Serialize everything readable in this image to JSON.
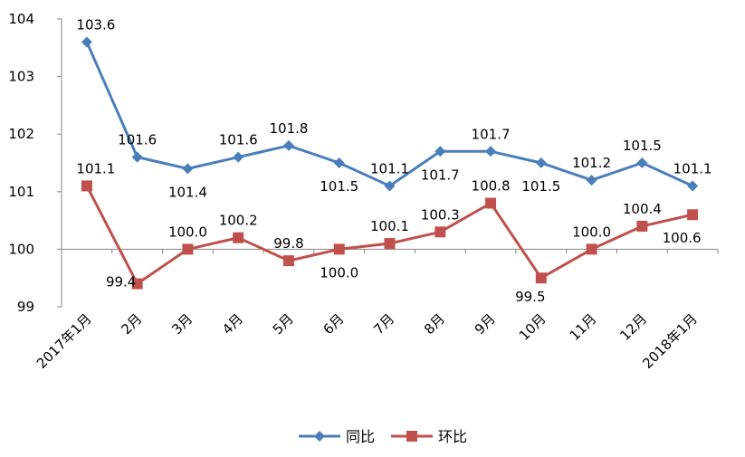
{
  "chart_data": {
    "type": "line",
    "categories": [
      "2017年1月",
      "2月",
      "3月",
      "4月",
      "5月",
      "6月",
      "7月",
      "8月",
      "9月",
      "10月",
      "11月",
      "12月",
      "2018年1月"
    ],
    "series": [
      {
        "name": "同比",
        "color": "#4a7ebb",
        "marker": "diamond",
        "values": [
          103.6,
          101.6,
          101.4,
          101.6,
          101.8,
          101.5,
          101.1,
          101.7,
          101.7,
          101.5,
          101.2,
          101.5,
          101.1
        ],
        "value_labels": [
          "103.6",
          "101.6",
          "101.4",
          "101.6",
          "101.8",
          "101.5",
          "101.1",
          "101.7",
          "101.7",
          "101.5",
          "101.2",
          "101.5",
          "101.1"
        ]
      },
      {
        "name": "环比",
        "color": "#c0504d",
        "marker": "square",
        "values": [
          101.1,
          99.4,
          100.0,
          100.2,
          99.8,
          100.0,
          100.1,
          100.3,
          100.8,
          99.5,
          100.0,
          100.4,
          100.6
        ],
        "value_labels": [
          "101.1",
          "99.4",
          "100.0",
          "100.2",
          "99.8",
          "100.0",
          "100.1",
          "100.3",
          "100.8",
          "99.5",
          "100.0",
          "100.4",
          "100.6"
        ]
      }
    ],
    "ylim": [
      99,
      104
    ],
    "yticks": [
      "99",
      "100",
      "101",
      "102",
      "103",
      "104"
    ],
    "grid": false,
    "legend_position": "bottom"
  }
}
